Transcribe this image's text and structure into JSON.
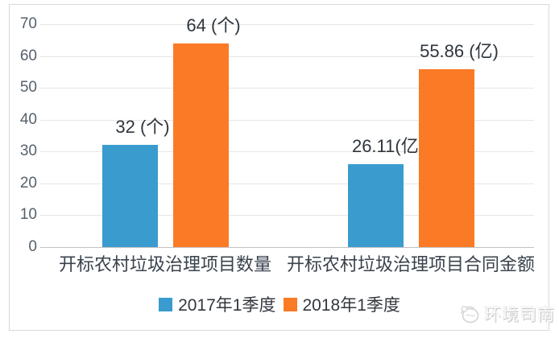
{
  "chart_data": {
    "type": "bar",
    "title": "",
    "categories": [
      "开标农村垃圾治理项目数量",
      "开标农村垃圾治理项目合同金额"
    ],
    "series": [
      {
        "name": "2017年1季度",
        "color": "#3A9BCE",
        "values": [
          32,
          26.11
        ],
        "value_labels": [
          "32 (个)",
          "26.11(亿)"
        ]
      },
      {
        "name": "2018年1季度",
        "color": "#FB7A26",
        "values": [
          64,
          55.86
        ],
        "value_labels": [
          "64 (个)",
          "55.86 (亿)"
        ]
      }
    ],
    "xlabel": "",
    "ylabel": "",
    "ylim": [
      0,
      70
    ],
    "y_ticks": [
      0,
      10,
      20,
      30,
      40,
      50,
      60,
      70
    ],
    "grid": "horizontal",
    "legend_position": "bottom"
  },
  "watermark": {
    "text": "环境司南"
  },
  "colors": {
    "bar_blue": "#3A9BCE",
    "bar_orange": "#FB7A26",
    "gridline": "#e6e6e6",
    "axis_line": "#c2c2c2",
    "tick_text": "#56616c",
    "label_text": "#2e353d",
    "frame_border": "#d9d9d9"
  }
}
